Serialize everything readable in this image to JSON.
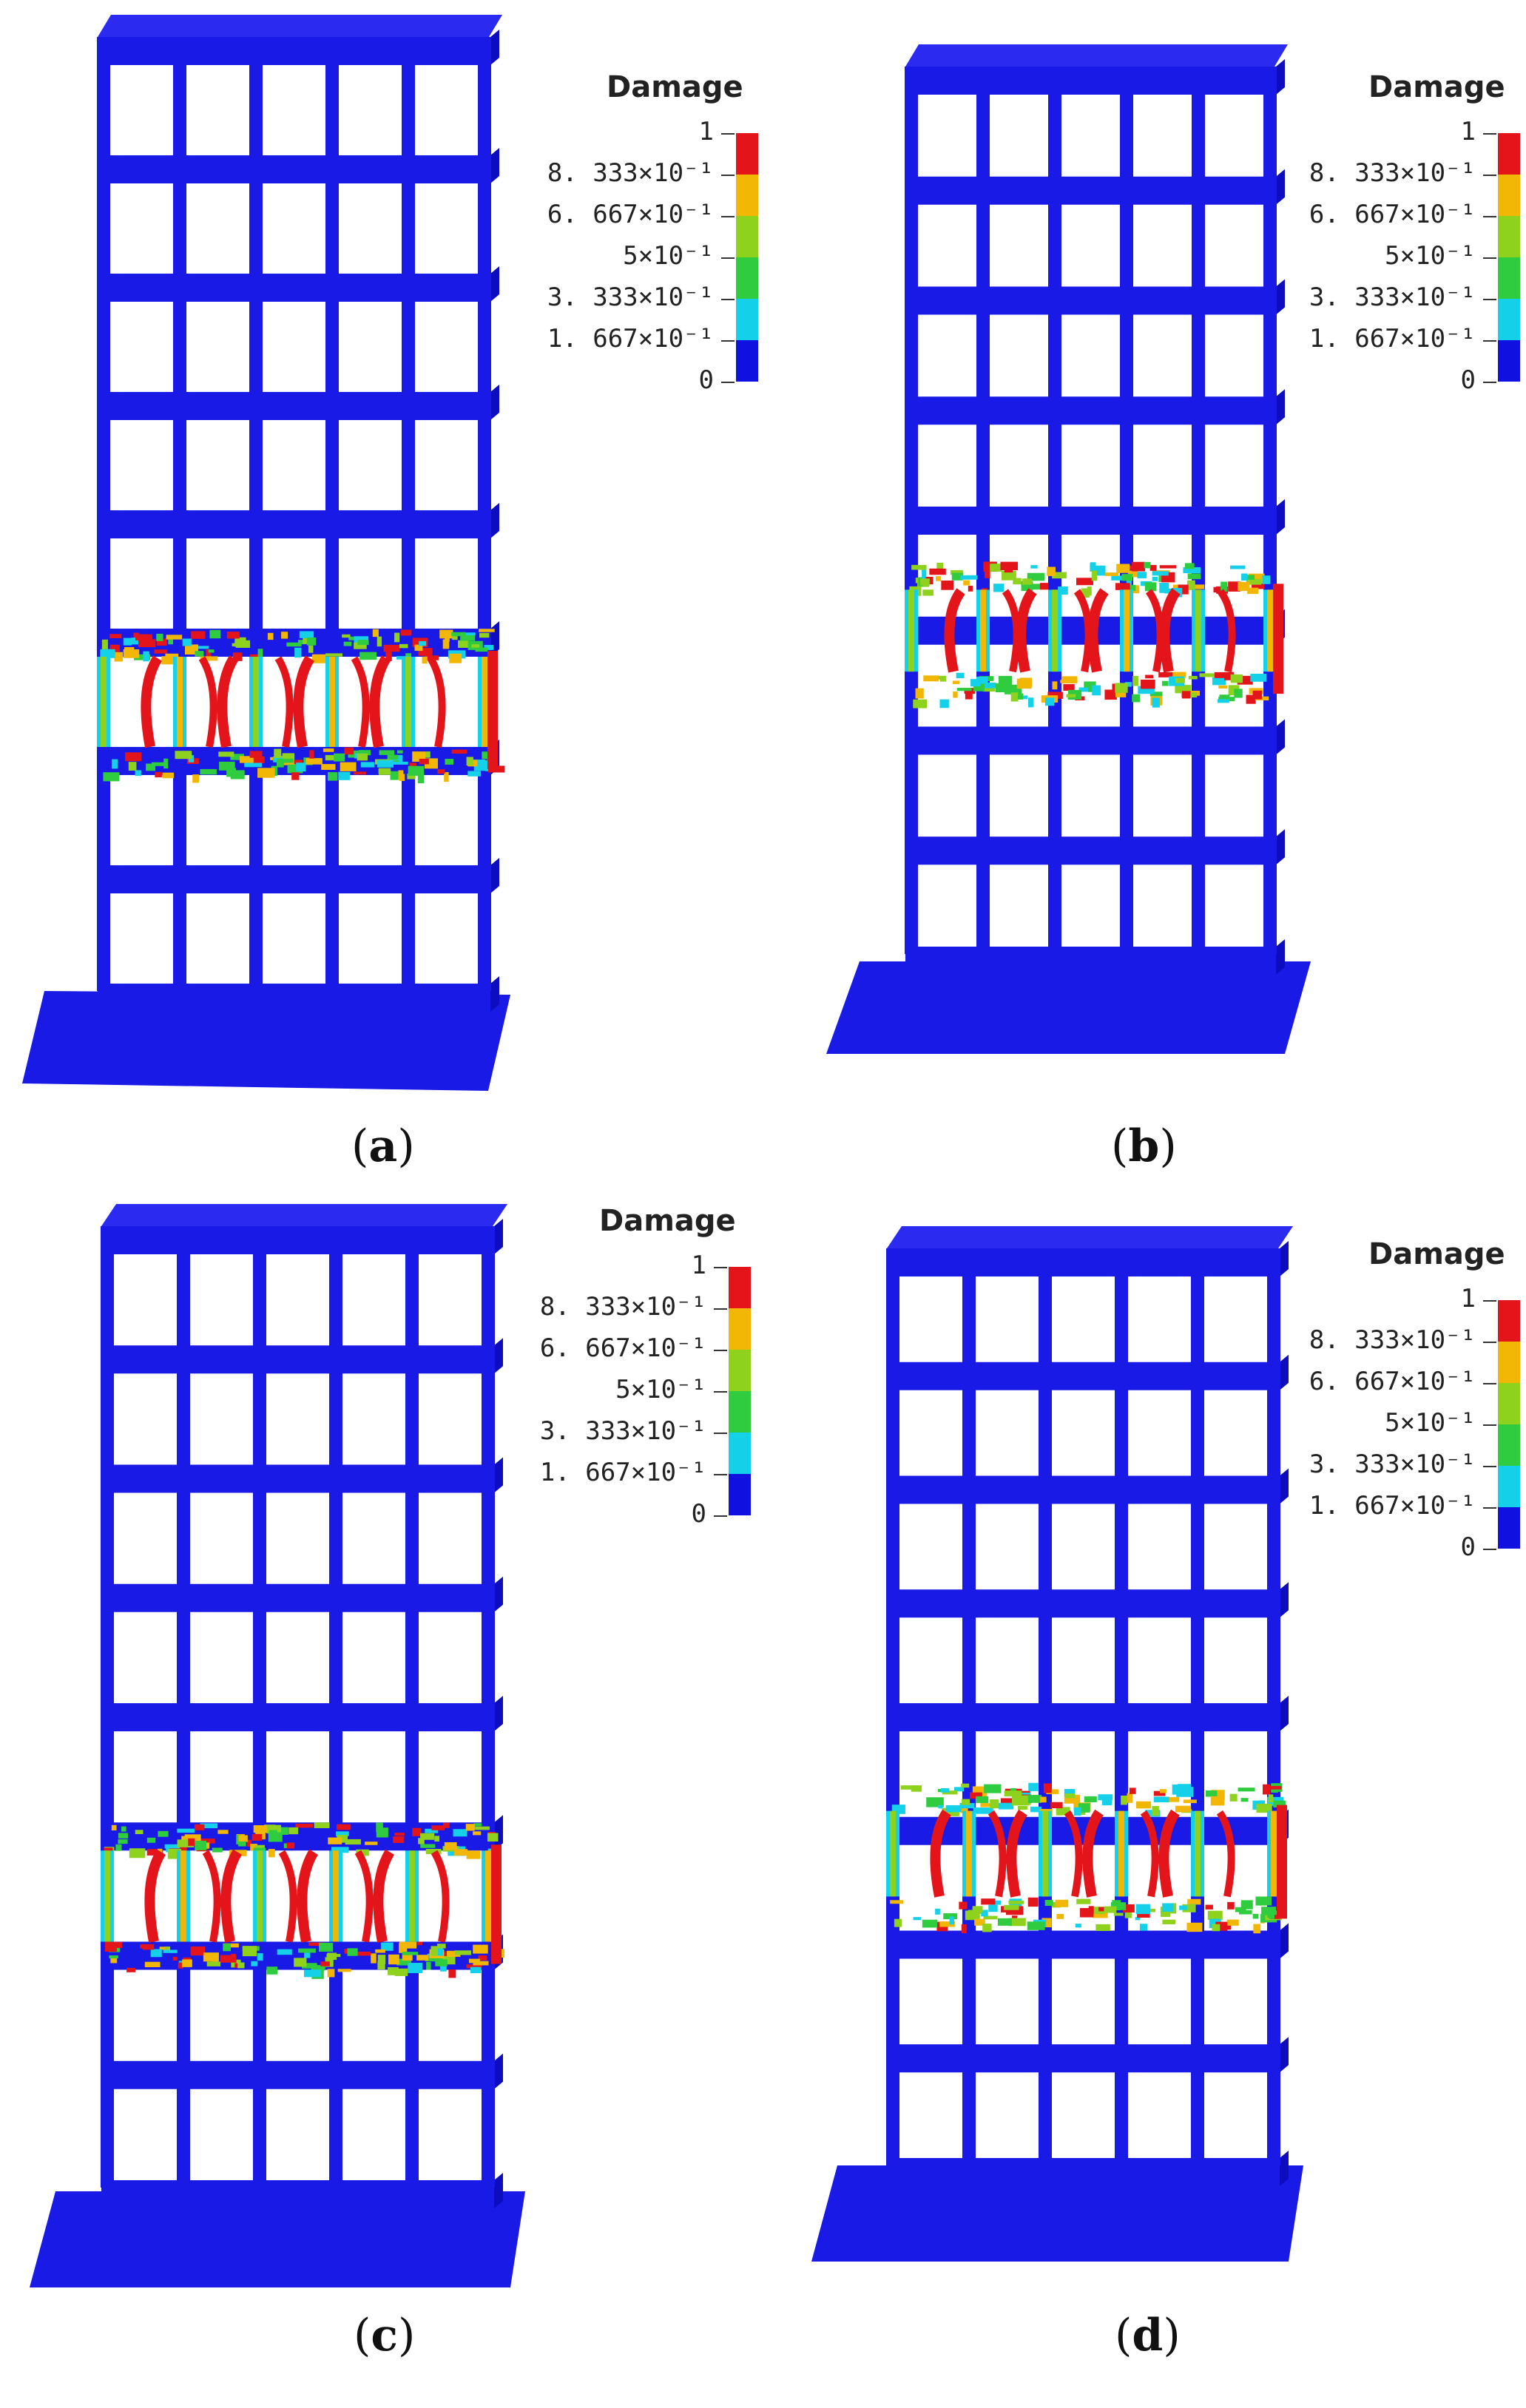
{
  "legend": {
    "title": "Damage",
    "labels": [
      "1",
      "8. 333×10⁻¹",
      "6. 667×10⁻¹",
      "5×10⁻¹",
      "3. 333×10⁻¹",
      "1. 667×10⁻¹",
      "0"
    ],
    "colors": [
      "#e4141b",
      "#f2b705",
      "#8fd21e",
      "#2ecc3e",
      "#14d0e8",
      "#1010e0"
    ]
  },
  "structure": {
    "color": "#1a1ae6",
    "stories": 8,
    "bays": 5
  },
  "panels": [
    {
      "id": "a",
      "caption": "a"
    },
    {
      "id": "b",
      "caption": "b"
    },
    {
      "id": "c",
      "caption": "c"
    },
    {
      "id": "d",
      "caption": "d"
    }
  ]
}
